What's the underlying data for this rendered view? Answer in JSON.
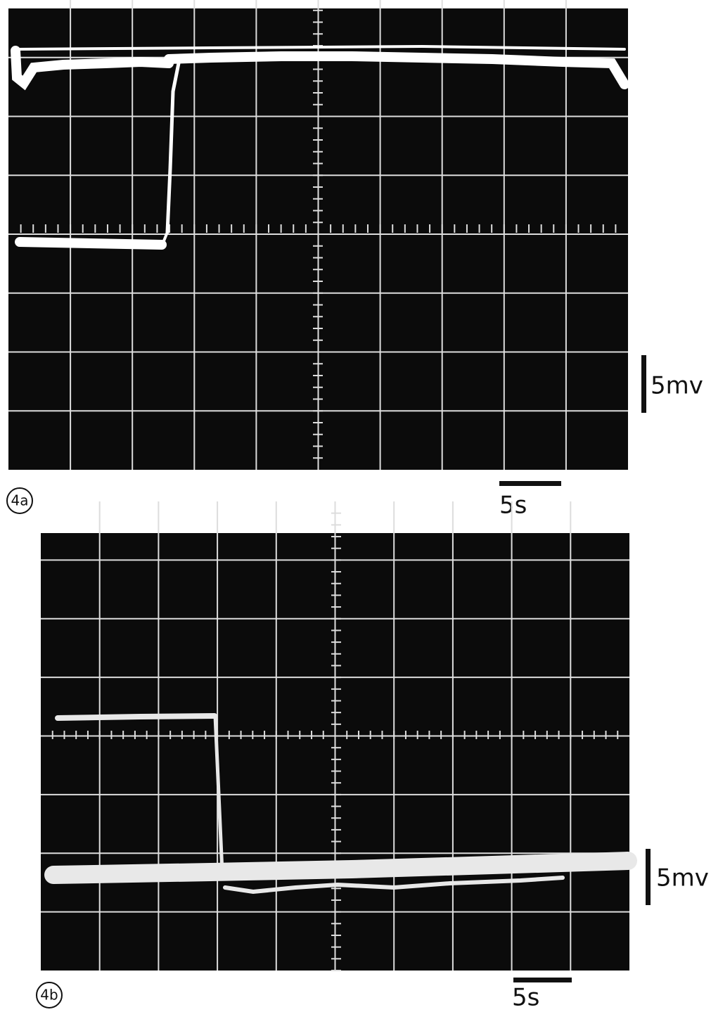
{
  "panels": [
    {
      "label": "4a",
      "voltage_scale": "5mv",
      "time_scale": "5s"
    },
    {
      "label": "4b",
      "voltage_scale": "5mv",
      "time_scale": "5s"
    }
  ]
}
